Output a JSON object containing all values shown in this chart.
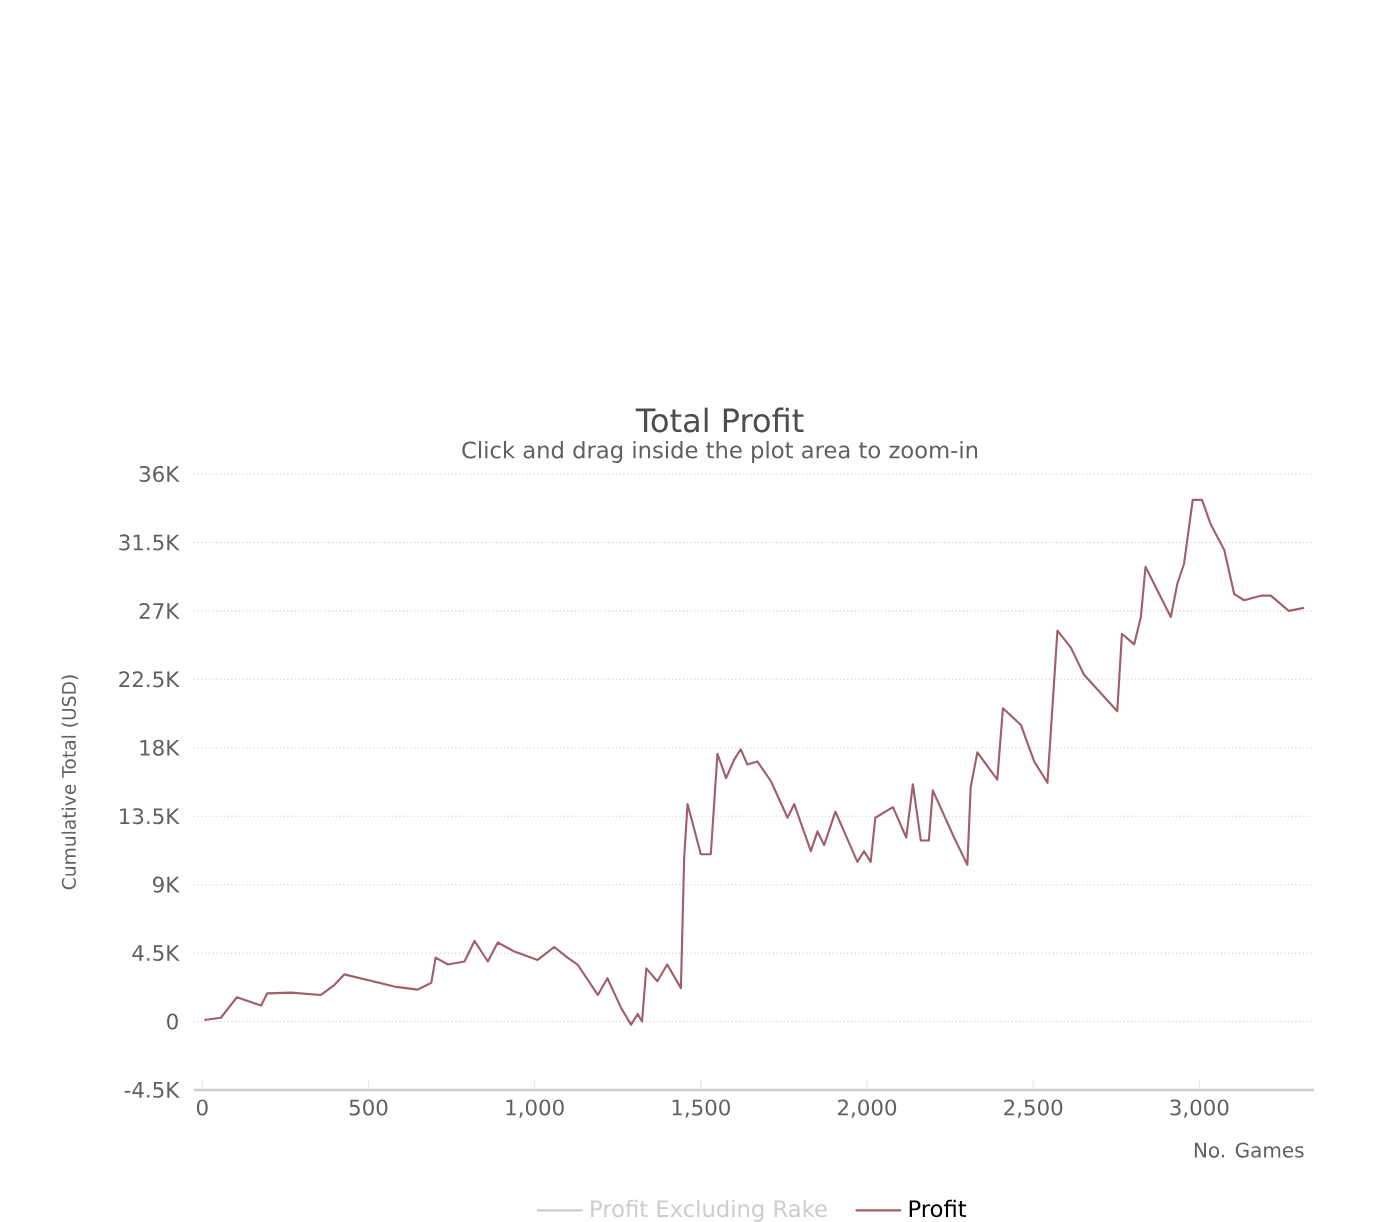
{
  "chart_data": {
    "type": "line",
    "title": "Total Profit",
    "subtitle": "Click and drag inside the plot area to zoom-in",
    "xlabel": "No. Games",
    "ylabel": "Cumulative Total (USD)",
    "xlim": [
      -25,
      3345
    ],
    "ylim": [
      -4500,
      36000
    ],
    "xticks": [
      {
        "value": 0,
        "label": "0"
      },
      {
        "value": 500,
        "label": "500"
      },
      {
        "value": 1000,
        "label": "1,000"
      },
      {
        "value": 1500,
        "label": "1,500"
      },
      {
        "value": 2000,
        "label": "2,000"
      },
      {
        "value": 2500,
        "label": "2,500"
      },
      {
        "value": 3000,
        "label": "3,000"
      }
    ],
    "yticks": [
      {
        "value": -4500,
        "label": "-4.5K"
      },
      {
        "value": 0,
        "label": "0"
      },
      {
        "value": 4500,
        "label": "4.5K"
      },
      {
        "value": 9000,
        "label": "9K"
      },
      {
        "value": 13500,
        "label": "13.5K"
      },
      {
        "value": 18000,
        "label": "18K"
      },
      {
        "value": 22500,
        "label": "22.5K"
      },
      {
        "value": 27000,
        "label": "27K"
      },
      {
        "value": 31500,
        "label": "31.5K"
      },
      {
        "value": 36000,
        "label": "36K"
      }
    ],
    "grid": "y",
    "legend": "bottom",
    "marker": "none",
    "line_style": "solid",
    "series": [
      {
        "name": "Profit Excluding Rake",
        "color": "#cccccc"
      },
      {
        "name": "Profit",
        "color": "#a0606a",
        "x": [
          6,
          56,
          104,
          177,
          195,
          267,
          357,
          397,
          427,
          578,
          648,
          689,
          702,
          739,
          789,
          819,
          859,
          889,
          939,
          1009,
          1059,
          1099,
          1129,
          1190,
          1219,
          1260,
          1290,
          1310,
          1323,
          1336,
          1369,
          1399,
          1440,
          1450,
          1460,
          1500,
          1530,
          1550,
          1576,
          1600,
          1620,
          1640,
          1670,
          1711,
          1761,
          1781,
          1831,
          1851,
          1871,
          1905,
          1971,
          1991,
          2011,
          2025,
          2078,
          2118,
          2138,
          2162,
          2186,
          2198,
          2262,
          2302,
          2312,
          2332,
          2392,
          2409,
          2463,
          2503,
          2543,
          2573,
          2613,
          2653,
          2753,
          2767,
          2804,
          2824,
          2838,
          2914,
          2934,
          2954,
          2980,
          3008,
          3034,
          3075,
          3105,
          3135,
          3185,
          3215,
          3269,
          3315
        ],
        "values": [
          100,
          250,
          1600,
          1050,
          1850,
          1900,
          1750,
          2400,
          3100,
          2300,
          2100,
          2550,
          4200,
          3750,
          3950,
          5300,
          3950,
          5200,
          4600,
          4050,
          4900,
          4200,
          3750,
          1750,
          2850,
          900,
          -200,
          500,
          0,
          3500,
          2650,
          3750,
          2200,
          10800,
          14300,
          11000,
          11000,
          17600,
          16000,
          17200,
          17900,
          16900,
          17100,
          15800,
          13400,
          14300,
          11200,
          12500,
          11600,
          13800,
          10500,
          11200,
          10500,
          13400,
          14100,
          12100,
          15600,
          11900,
          11900,
          15200,
          12100,
          10300,
          15400,
          17700,
          15900,
          20600,
          19500,
          17100,
          15700,
          25700,
          24600,
          22800,
          20400,
          25500,
          24800,
          26600,
          29900,
          26600,
          28800,
          30100,
          34300,
          34300,
          32700,
          31000,
          28100,
          27700,
          28000,
          28000,
          27000,
          27200
        ]
      }
    ]
  }
}
